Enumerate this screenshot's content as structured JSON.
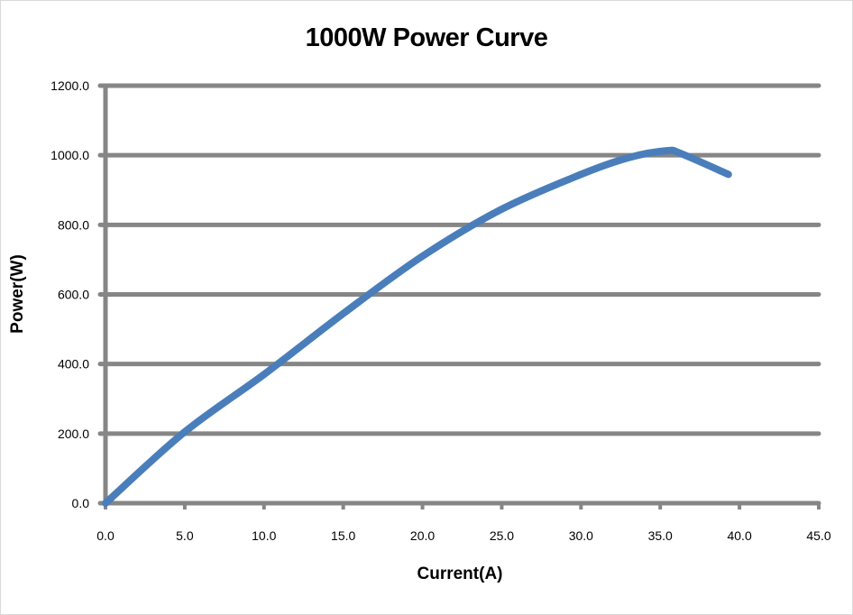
{
  "chart_data": {
    "type": "line",
    "title": "1000W Power Curve",
    "xlabel": "Current(A)",
    "ylabel": "Power(W)",
    "xlim": [
      0,
      45
    ],
    "ylim": [
      0,
      1200
    ],
    "x_ticks": [
      "0.0",
      "5.0",
      "10.0",
      "15.0",
      "20.0",
      "25.0",
      "30.0",
      "35.0",
      "40.0",
      "45.0"
    ],
    "y_ticks": [
      "0.0",
      "200.0",
      "400.0",
      "600.0",
      "800.0",
      "1000.0",
      "1200.0"
    ],
    "grid": "horizontal",
    "legend": "none",
    "colors": {
      "line": "#4a7ebb",
      "grid": "#868686"
    },
    "series": [
      {
        "x": [
          0,
          5,
          10,
          15,
          20,
          25,
          30,
          33,
          35.4,
          36.3,
          39.3
        ],
        "y": [
          0,
          205,
          370,
          545,
          710,
          845,
          945,
          993,
          1013,
          1005,
          945
        ]
      }
    ]
  }
}
